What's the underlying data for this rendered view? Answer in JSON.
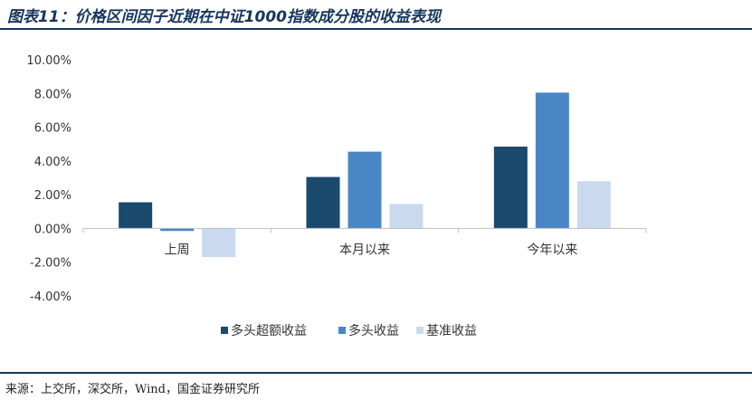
{
  "header": {
    "title": "图表11：价格区间因子近期在中证1000指数成分股的收益表现"
  },
  "footer": {
    "source": "来源：上交所，深交所，Wind，国金证券研究所"
  },
  "colors": {
    "series": [
      "#1a4a6e",
      "#4a86c5",
      "#c9daee"
    ],
    "axis": "#bfbfbf",
    "rule": "#16365c"
  },
  "chart_data": {
    "type": "bar",
    "title": "",
    "xlabel": "",
    "ylabel": "",
    "categories": [
      "上周",
      "本月以来",
      "今年以来"
    ],
    "series": [
      {
        "name": "多头超额收益",
        "values": [
          1.55,
          3.05,
          4.85
        ]
      },
      {
        "name": "多头收益",
        "values": [
          -0.15,
          4.55,
          8.05
        ]
      },
      {
        "name": "基准收益",
        "values": [
          -1.7,
          1.45,
          2.8
        ]
      }
    ],
    "ylim": [
      -4,
      10
    ],
    "yticks": [
      10,
      8,
      6,
      4,
      2,
      0,
      -2,
      -4
    ],
    "ytick_labels": [
      "10.00%",
      "8.00%",
      "6.00%",
      "4.00%",
      "2.00%",
      "0.00%",
      "-2.00%",
      "-4.00%"
    ],
    "legend": "bottom",
    "grid": false
  }
}
